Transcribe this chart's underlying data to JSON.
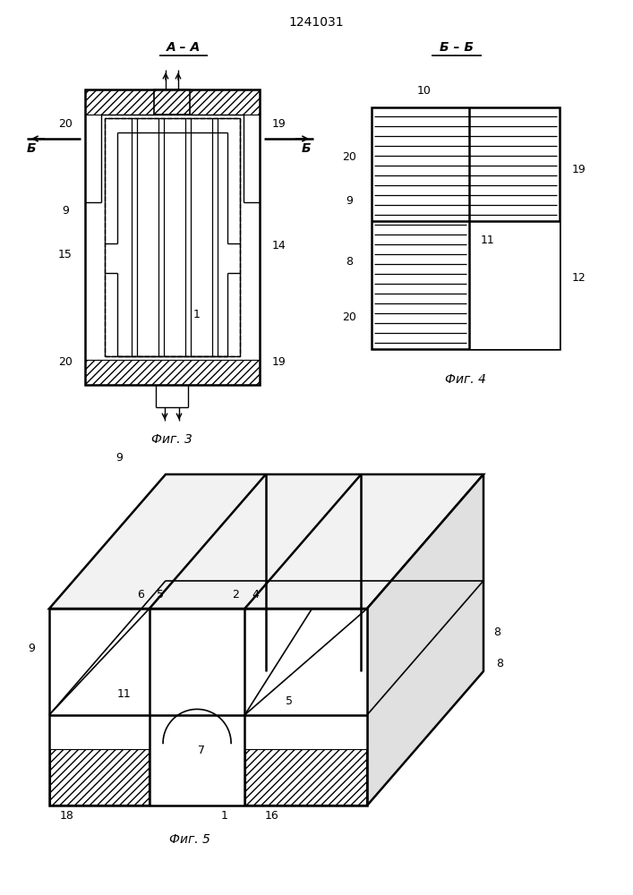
{
  "title": "1241031",
  "bg_color": "#ffffff",
  "fig3_label": "Фиг. 3",
  "fig4_label": "Фиг. 4",
  "fig5_label": "Фиг. 5",
  "section_aa": "A – A",
  "section_bb": "Б – Б"
}
